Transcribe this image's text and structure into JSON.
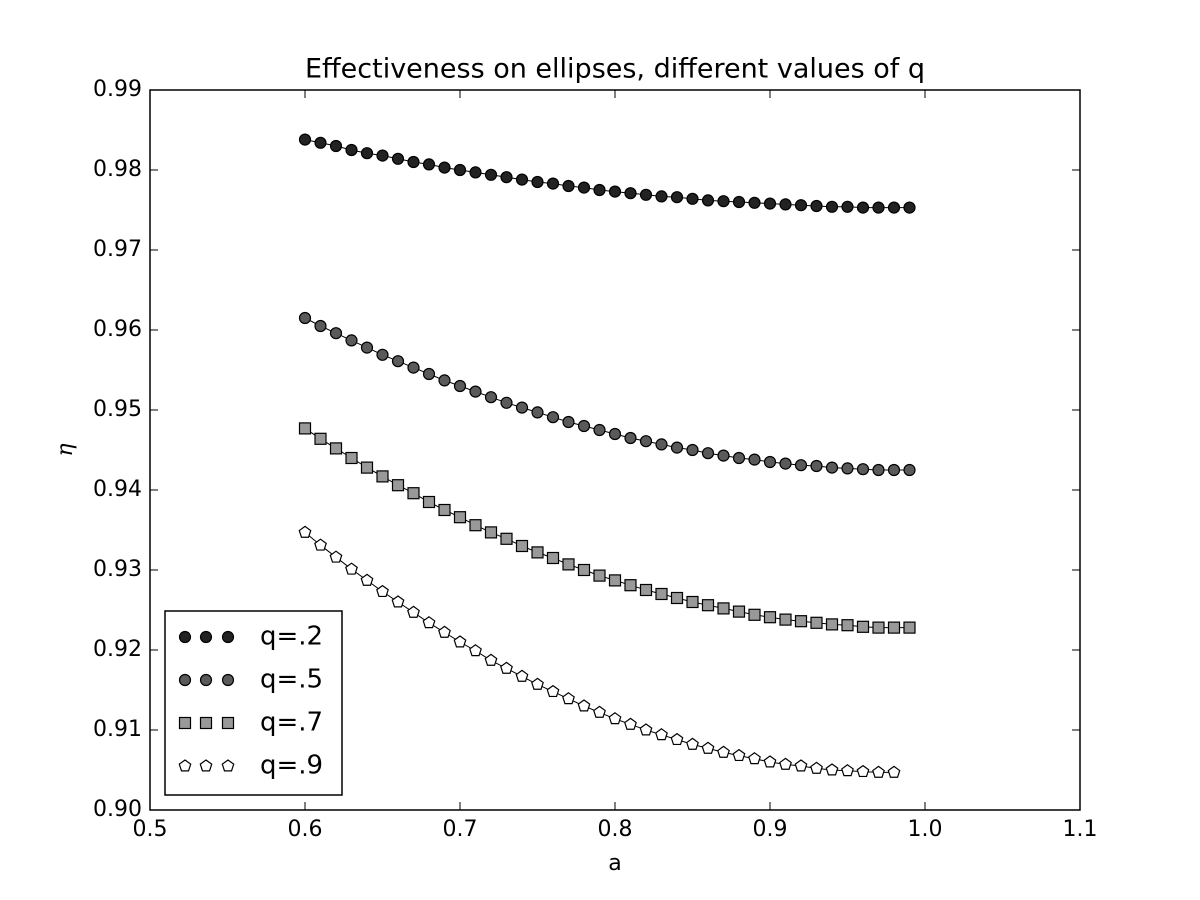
{
  "chart_data": {
    "type": "line",
    "title": "Effectiveness on ellipses, different values of q",
    "x_label": "a",
    "y_label": "η",
    "xlim": [
      0.5,
      1.1
    ],
    "ylim": [
      0.9,
      0.99
    ],
    "xticks": [
      0.5,
      0.6,
      0.7,
      0.8,
      0.9,
      {
        "value": 1,
        "label": "1.0"
      },
      1.1
    ],
    "yticks": [
      {
        "value": 0.9,
        "label": "0.90"
      },
      0.91,
      0.92,
      0.93,
      0.94,
      0.95,
      0.96,
      0.97,
      0.98,
      0.99
    ],
    "grid": false,
    "legend": "lower left",
    "series": [
      {
        "name": "q=.2",
        "color": "#222222",
        "marker": "circle",
        "x": [
          0.6,
          0.61,
          0.62,
          0.63,
          0.64,
          0.65,
          0.66,
          0.67,
          0.68,
          0.69,
          0.7,
          0.71,
          0.72,
          0.73,
          0.74,
          0.75,
          0.76,
          0.77,
          0.78,
          0.79,
          0.8,
          0.81,
          0.82,
          0.83,
          0.84,
          0.85,
          0.86,
          0.87,
          0.88,
          0.89,
          0.9,
          0.91,
          0.92,
          0.93,
          0.94,
          0.95,
          0.96,
          0.97,
          0.98,
          0.99
        ],
        "values": [
          0.9838,
          0.9834,
          0.983,
          0.9825,
          0.9821,
          0.9818,
          0.9814,
          0.981,
          0.9807,
          0.9803,
          0.98,
          0.9797,
          0.9794,
          0.9791,
          0.9788,
          0.9785,
          0.9783,
          0.978,
          0.9778,
          0.9775,
          0.9773,
          0.9771,
          0.9769,
          0.9767,
          0.9766,
          0.9764,
          0.9762,
          0.9761,
          0.976,
          0.9759,
          0.9758,
          0.9757,
          0.9756,
          0.9755,
          0.9754,
          0.9754,
          0.9753,
          0.9753,
          0.9753,
          0.9753
        ]
      },
      {
        "name": "q=.5",
        "color": "#5a5a5a",
        "marker": "circle",
        "x": [
          0.6,
          0.61,
          0.62,
          0.63,
          0.64,
          0.65,
          0.66,
          0.67,
          0.68,
          0.69,
          0.7,
          0.71,
          0.72,
          0.73,
          0.74,
          0.75,
          0.76,
          0.77,
          0.78,
          0.79,
          0.8,
          0.81,
          0.82,
          0.83,
          0.84,
          0.85,
          0.86,
          0.87,
          0.88,
          0.89,
          0.9,
          0.91,
          0.92,
          0.93,
          0.94,
          0.95,
          0.96,
          0.97,
          0.98,
          0.99
        ],
        "values": [
          0.9615,
          0.9605,
          0.9596,
          0.9587,
          0.9578,
          0.9569,
          0.9561,
          0.9553,
          0.9545,
          0.9537,
          0.953,
          0.9523,
          0.9516,
          0.9509,
          0.9503,
          0.9497,
          0.9491,
          0.9485,
          0.948,
          0.9475,
          0.947,
          0.9465,
          0.9461,
          0.9457,
          0.9453,
          0.945,
          0.9446,
          0.9443,
          0.944,
          0.9438,
          0.9435,
          0.9433,
          0.9431,
          0.943,
          0.9428,
          0.9427,
          0.9426,
          0.9425,
          0.9425,
          0.9425
        ]
      },
      {
        "name": "q=.7",
        "color": "#999999",
        "marker": "square",
        "x": [
          0.6,
          0.61,
          0.62,
          0.63,
          0.64,
          0.65,
          0.66,
          0.67,
          0.68,
          0.69,
          0.7,
          0.71,
          0.72,
          0.73,
          0.74,
          0.75,
          0.76,
          0.77,
          0.78,
          0.79,
          0.8,
          0.81,
          0.82,
          0.83,
          0.84,
          0.85,
          0.86,
          0.87,
          0.88,
          0.89,
          0.9,
          0.91,
          0.92,
          0.93,
          0.94,
          0.95,
          0.96,
          0.97,
          0.98,
          0.99
        ],
        "values": [
          0.9477,
          0.9464,
          0.9452,
          0.944,
          0.9428,
          0.9417,
          0.9406,
          0.9396,
          0.9385,
          0.9375,
          0.9366,
          0.9356,
          0.9347,
          0.9339,
          0.933,
          0.9322,
          0.9315,
          0.9307,
          0.93,
          0.9293,
          0.9287,
          0.9281,
          0.9275,
          0.927,
          0.9265,
          0.926,
          0.9256,
          0.9252,
          0.9248,
          0.9244,
          0.9241,
          0.9238,
          0.9236,
          0.9234,
          0.9232,
          0.9231,
          0.9229,
          0.9228,
          0.9228,
          0.9228
        ]
      },
      {
        "name": "q=.9",
        "color": "#ffffff",
        "marker": "pentagon",
        "x": [
          0.6,
          0.61,
          0.62,
          0.63,
          0.64,
          0.65,
          0.66,
          0.67,
          0.68,
          0.69,
          0.7,
          0.71,
          0.72,
          0.73,
          0.74,
          0.75,
          0.76,
          0.77,
          0.78,
          0.79,
          0.8,
          0.81,
          0.82,
          0.83,
          0.84,
          0.85,
          0.86,
          0.87,
          0.88,
          0.89,
          0.9,
          0.91,
          0.92,
          0.93,
          0.94,
          0.95,
          0.96,
          0.97,
          0.98
        ],
        "values": [
          0.9347,
          0.9331,
          0.9316,
          0.9301,
          0.9287,
          0.9273,
          0.926,
          0.9247,
          0.9234,
          0.9222,
          0.921,
          0.9199,
          0.9187,
          0.9177,
          0.9167,
          0.9157,
          0.9148,
          0.9139,
          0.913,
          0.9122,
          0.9114,
          0.9107,
          0.91,
          0.9094,
          0.9088,
          0.9082,
          0.9077,
          0.9072,
          0.9068,
          0.9064,
          0.906,
          0.9057,
          0.9055,
          0.9052,
          0.905,
          0.9049,
          0.9048,
          0.9047,
          0.9047
        ]
      }
    ]
  }
}
